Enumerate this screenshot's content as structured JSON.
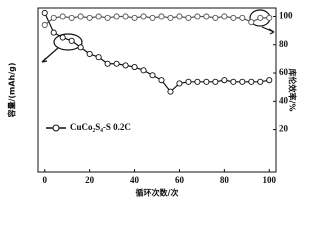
{
  "chart_data": {
    "type": "line",
    "x_label": "循环次数/次",
    "y_label": "容量/(mAh/g)",
    "y2_label": "库伦效率/%",
    "x": [
      0,
      4,
      8,
      12,
      16,
      20,
      24,
      28,
      32,
      36,
      40,
      44,
      48,
      52,
      56,
      60,
      64,
      68,
      72,
      76,
      80,
      84,
      88,
      92,
      96,
      100
    ],
    "series": [
      {
        "name": "CuCo₂S₄-S 0.2C",
        "color": "#111111",
        "values": [
          97,
          85,
          82,
          80,
          76,
          72,
          70,
          66,
          66,
          65,
          64,
          62,
          59,
          56,
          49,
          54,
          55,
          55,
          55,
          55,
          56,
          55,
          55,
          55,
          55,
          56
        ]
      },
      {
        "color": "#555555",
        "axis": "y2",
        "values": [
          94,
          99,
          100,
          99,
          100,
          99,
          100,
          99,
          100,
          100,
          99,
          100,
          99,
          100,
          99,
          100,
          99,
          100,
          100,
          99,
          100,
          99,
          99,
          96,
          99,
          99
        ]
      }
    ],
    "xlim": [
      -3,
      103
    ],
    "xticks": [
      0,
      20,
      40,
      60,
      80,
      100
    ],
    "ylim": [
      0,
      100
    ],
    "y2lim": [
      -10,
      106
    ],
    "y2ticks": [
      20,
      40,
      60,
      80,
      100
    ],
    "legend": "lower-left"
  }
}
